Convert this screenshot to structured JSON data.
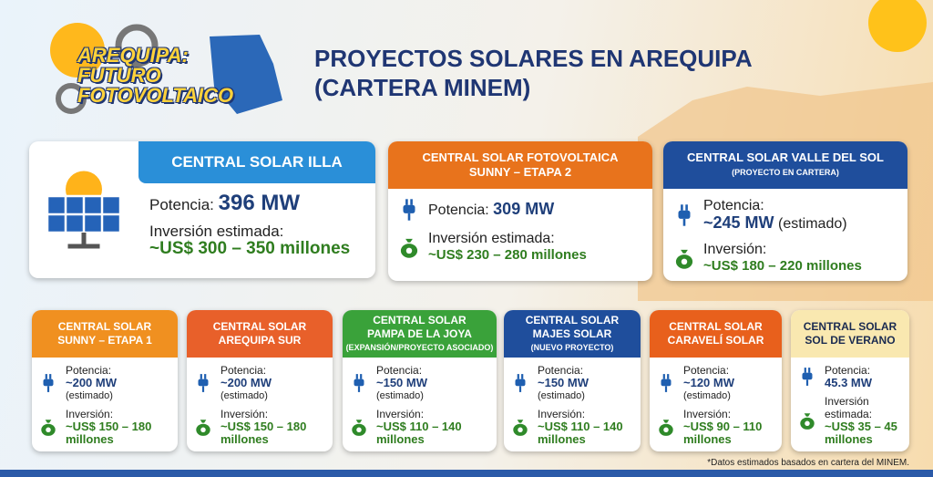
{
  "logo": {
    "line1": "AREQUIPA:",
    "line2": "FUTURO",
    "line3": "FOTOVOLTAICO"
  },
  "title": {
    "line1": "PROYECTOS SOLARES EN AREQUIPA",
    "line2": "(CARTERA MINEM)"
  },
  "top_cards": [
    {
      "title": [
        "CENTRAL SOLAR ILLA"
      ],
      "power": {
        "label": "Potencia:",
        "value": "396 MW"
      },
      "investment": {
        "label": "Inversión estimada:",
        "value": [
          "~US$ 300 – 350 millones"
        ]
      }
    },
    {
      "title": [
        "CENTRAL SOLAR FOTOVOLTAICA",
        "SUNNY – ETAPA 2"
      ],
      "power": {
        "label": "Potencia:",
        "value": "309 MW"
      },
      "investment": {
        "label": "Inversión estimada:",
        "value": [
          "~US$ 230 – 280 millones"
        ]
      }
    },
    {
      "title": [
        "CENTRAL SOLAR VALLE DEL SOL"
      ],
      "subtitle": "(PROYECTO EN CARTERA)",
      "power": {
        "label": "Potencia:",
        "value": "~245 MW",
        "note": "(estimado)"
      },
      "investment": {
        "label": "Inversión:",
        "value": [
          "~US$ 180 – 220 millones"
        ]
      }
    }
  ],
  "bottom_cards": [
    {
      "title": [
        "CENTRAL SOLAR",
        "SUNNY – ETAPA 1"
      ],
      "power": {
        "label": "Potencia:",
        "value": "~200 MW",
        "note": "(estimado)"
      },
      "investment": {
        "label": "Inversión:",
        "value": [
          "~US$ 150 – 180",
          "millones"
        ]
      }
    },
    {
      "title": [
        "CENTRAL SOLAR",
        "AREQUIPA SUR"
      ],
      "power": {
        "label": "Potencia:",
        "value": "~200 MW",
        "note": "(estimado)"
      },
      "investment": {
        "label": "Inversión:",
        "value": [
          "~US$ 150 – 180",
          "millones"
        ]
      }
    },
    {
      "title": [
        "CENTRAL SOLAR",
        "PAMPA DE LA JOYA"
      ],
      "subtitle": "(EXPANSIÓN/PROYECTO ASOCIADO)",
      "power": {
        "label": "Potencia:",
        "value": "~150 MW",
        "note": "(estimado)"
      },
      "investment": {
        "label": "Inversión:",
        "value": [
          "~US$ 110 – 140",
          "millones"
        ]
      }
    },
    {
      "title": [
        "CENTRAL SOLAR",
        "MAJES SOLAR"
      ],
      "subtitle": "(NUEVO PROYECTO)",
      "power": {
        "label": "Potencia:",
        "value": "~150 MW",
        "note": "(estimado)"
      },
      "investment": {
        "label": "Inversión:",
        "value": [
          "~US$ 110 – 140",
          "millones"
        ]
      }
    },
    {
      "title": [
        "CENTRAL SOLAR",
        "CARAVELÍ SOLAR"
      ],
      "power": {
        "label": "Potencia:",
        "value": "~120 MW",
        "note": "(estimado)"
      },
      "investment": {
        "label": "Inversión:",
        "value": [
          "~US$ 90 – 110",
          "millones"
        ]
      }
    },
    {
      "title": [
        "CENTRAL SOLAR",
        "SOL DE VERANO"
      ],
      "power": {
        "label": "Potencia:",
        "value": "45.3 MW"
      },
      "investment": {
        "label": "Inversión estimada:",
        "value": [
          "~US$ 35 – 45",
          "millones"
        ]
      }
    }
  ],
  "footnote": "*Datos estimados basados en cartera del MINEM."
}
